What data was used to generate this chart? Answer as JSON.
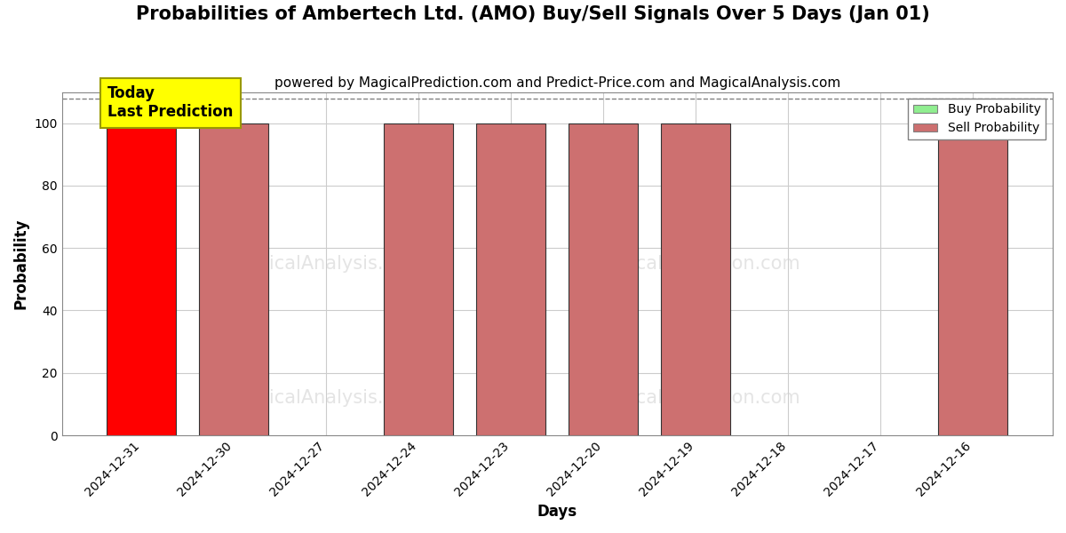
{
  "title": "Probabilities of Ambertech Ltd. (AMO) Buy/Sell Signals Over 5 Days (Jan 01)",
  "subtitle": "powered by MagicalPrediction.com and Predict-Price.com and MagicalAnalysis.com",
  "xlabel": "Days",
  "ylabel": "Probability",
  "ylim": [
    0,
    110
  ],
  "yticks": [
    0,
    20,
    40,
    60,
    80,
    100
  ],
  "categories": [
    "2024-12-31",
    "2024-12-30",
    "2024-12-27",
    "2024-12-24",
    "2024-12-23",
    "2024-12-20",
    "2024-12-19",
    "2024-12-18",
    "2024-12-17",
    "2024-12-16"
  ],
  "sell_values": [
    100,
    100,
    0,
    100,
    100,
    100,
    100,
    0,
    0,
    100
  ],
  "buy_values": [
    0,
    0,
    0,
    0,
    0,
    0,
    0,
    0,
    0,
    0
  ],
  "today_index": 0,
  "bar_width": 0.75,
  "sell_color_today": "#ff0000",
  "sell_color_normal": "#cd7070",
  "buy_color": "#90ee90",
  "today_box_color": "#ffff00",
  "today_box_text": "Today\nLast Prediction",
  "legend_buy_label": "Buy Probability",
  "legend_sell_label": "Sell Probability",
  "grid_color": "#cccccc",
  "dashed_line_y": 108,
  "background_color": "#ffffff",
  "title_fontsize": 15,
  "subtitle_fontsize": 11,
  "axis_label_fontsize": 12,
  "tick_fontsize": 10
}
